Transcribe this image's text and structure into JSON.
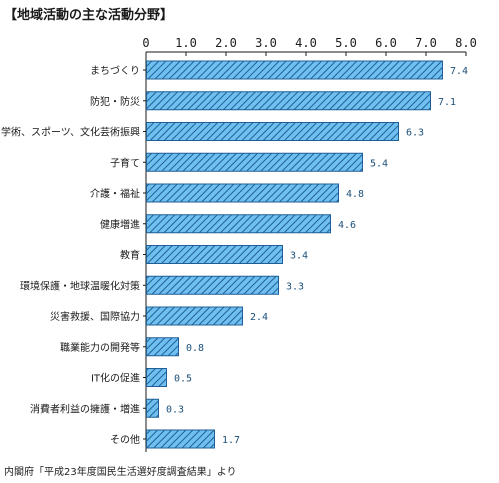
{
  "chart_data": {
    "type": "bar",
    "orientation": "horizontal",
    "title": "【地域活動の主な活動分野】",
    "categories": [
      "まちづくり",
      "防犯・防災",
      "学術、スポーツ、文化芸術振興",
      "子育て",
      "介護・福祉",
      "健康増進",
      "教育",
      "環境保護・地球温暖化対策",
      "災害救援、国際協力",
      "職業能力の開発等",
      "IT化の促進",
      "消費者利益の擁護・増進",
      "その他"
    ],
    "values": [
      7.4,
      7.1,
      6.3,
      5.4,
      4.8,
      4.6,
      3.4,
      3.3,
      2.4,
      0.8,
      0.5,
      0.3,
      1.7
    ],
    "value_labels": [
      "7.4",
      "7.1",
      "6.3",
      "5.4",
      "4.8",
      "4.6",
      "3.4",
      "3.3",
      "2.4",
      "0.8",
      "0.5",
      "0.3",
      "1.7"
    ],
    "xlim": [
      0,
      8
    ],
    "ticks": [
      "0",
      "1.0",
      "2.0",
      "3.0",
      "4.0",
      "5.0",
      "6.0",
      "7.0",
      "8.0"
    ],
    "axis_position": "top",
    "grid": false,
    "bar_fill": "#6fc0f0",
    "bar_stroke": "#1f5f96",
    "hatch_color": "#1f5f96",
    "value_label_color": "#1a4f7a",
    "source": "内閣府「平成23年度国民生活選好度調査結果」より"
  }
}
